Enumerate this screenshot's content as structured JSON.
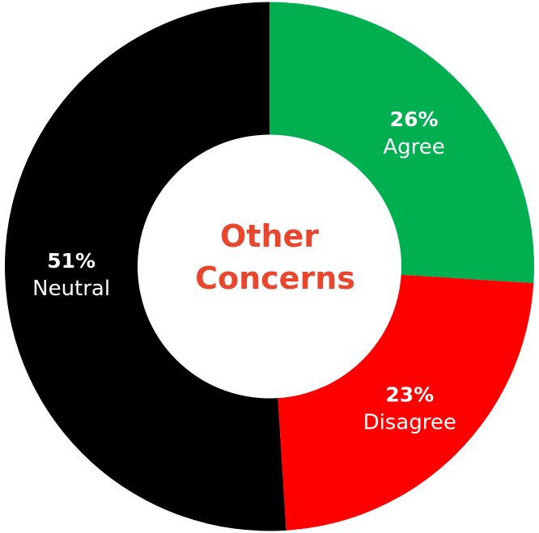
{
  "chart_data": {
    "type": "pie",
    "title": [
      "Other",
      "Concerns"
    ],
    "series": [
      {
        "name": "",
        "slices": [
          {
            "label": "Agree",
            "value": 26,
            "value_text": "26%",
            "color": "#00b050"
          },
          {
            "label": "Disagree",
            "value": 23,
            "value_text": "23%",
            "color": "#ff0000"
          },
          {
            "label": "Neutral",
            "value": 51,
            "value_text": "51%",
            "color": "#000000"
          }
        ]
      }
    ],
    "donut": true,
    "start_angle": "top",
    "direction": "clockwise",
    "title_color": "#e8472e",
    "label_color": "#ffffff",
    "legend": "none"
  }
}
